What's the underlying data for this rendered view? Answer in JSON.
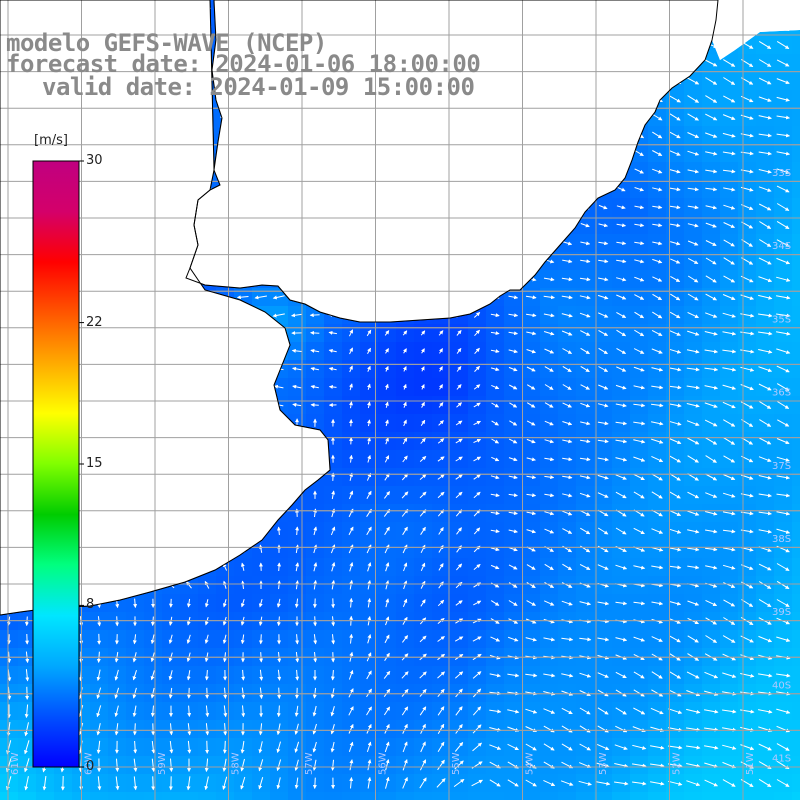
{
  "title": {
    "model": "modelo GEFS-WAVE (NCEP)",
    "forecast_date": "forecast date: 2024-01-06 18:00:00",
    "valid_date": "valid date: 2024-01-09 15:00:00"
  },
  "colorbar": {
    "unit": "[m/s]",
    "ticks": [
      {
        "value": 0,
        "label": "0"
      },
      {
        "value": 8,
        "label": "8"
      },
      {
        "value": 15,
        "label": "15"
      },
      {
        "value": 22,
        "label": "22"
      },
      {
        "value": 30,
        "label": "30"
      }
    ],
    "range": [
      0,
      30
    ],
    "colors": [
      "#0000ff",
      "#0050ff",
      "#00a8ff",
      "#00e6ff",
      "#00ff80",
      "#00cc00",
      "#80ff00",
      "#ffff00",
      "#ffaa00",
      "#ff5500",
      "#ff0000",
      "#d4006a",
      "#c00080"
    ]
  },
  "map": {
    "grid_color": "#a0a0a0",
    "coast_color": "#000000",
    "land_color": "#ffffff",
    "arrow_color": "#ffffff",
    "lat_labels": [
      "33S",
      "34S",
      "35S",
      "36S",
      "37S",
      "38S",
      "39S",
      "40S",
      "41S"
    ],
    "lon_labels": [
      "61W",
      "60W",
      "59W",
      "58W",
      "57W",
      "56W",
      "55W",
      "54W",
      "53W",
      "52W",
      "51W"
    ]
  }
}
